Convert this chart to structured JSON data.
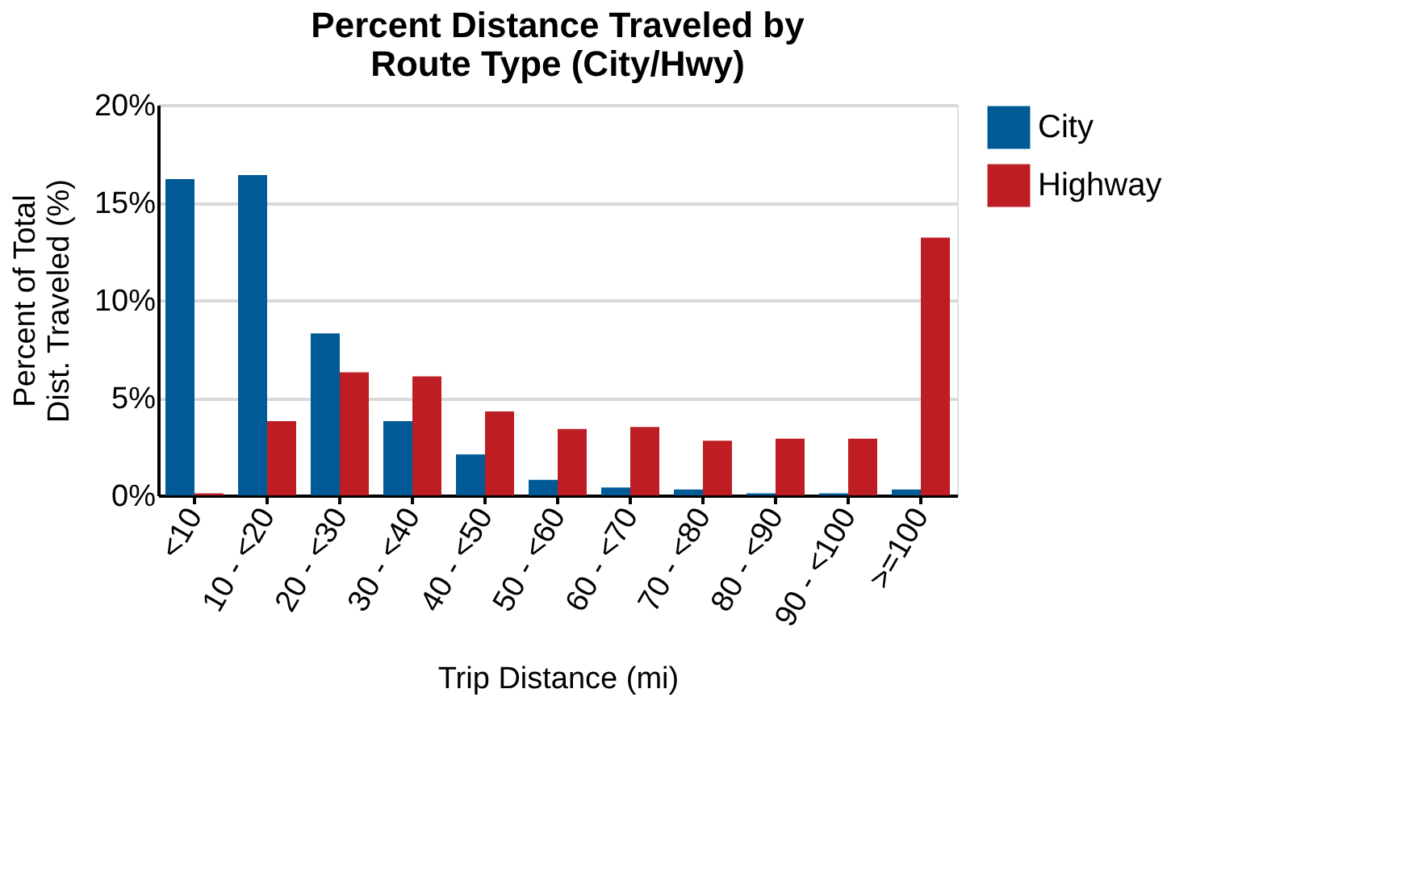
{
  "chart_data": {
    "type": "bar",
    "title": [
      "Percent Distance Traveled by",
      "Route Type (City/Hwy)"
    ],
    "xlabel": "Trip Distance (mi)",
    "ylabel": [
      "Percent of Total",
      "Dist. Traveled (%)"
    ],
    "categories": [
      "<10",
      "10 - <20",
      "20 - <30",
      "30 - <40",
      "40 - <50",
      "50 - <60",
      "60 - <70",
      "70 - <80",
      "80 - <90",
      "90 - <100",
      ">=100"
    ],
    "series": [
      {
        "name": "City",
        "color": "#005a96",
        "values": [
          16.2,
          16.4,
          8.3,
          3.8,
          2.1,
          0.8,
          0.4,
          0.3,
          0.1,
          0.1,
          0.3
        ]
      },
      {
        "name": "Highway",
        "color": "#be1e23",
        "values": [
          0.1,
          3.8,
          6.3,
          6.1,
          4.3,
          3.4,
          3.5,
          2.8,
          2.9,
          2.9,
          13.2
        ]
      }
    ],
    "ylim": [
      0,
      20
    ],
    "yticks": [
      {
        "value": 0,
        "label": "0%"
      },
      {
        "value": 5,
        "label": "5%"
      },
      {
        "value": 10,
        "label": "10%"
      },
      {
        "value": 15,
        "label": "15%"
      },
      {
        "value": 20,
        "label": "20%"
      }
    ],
    "grid": "y",
    "legend": "top right"
  }
}
